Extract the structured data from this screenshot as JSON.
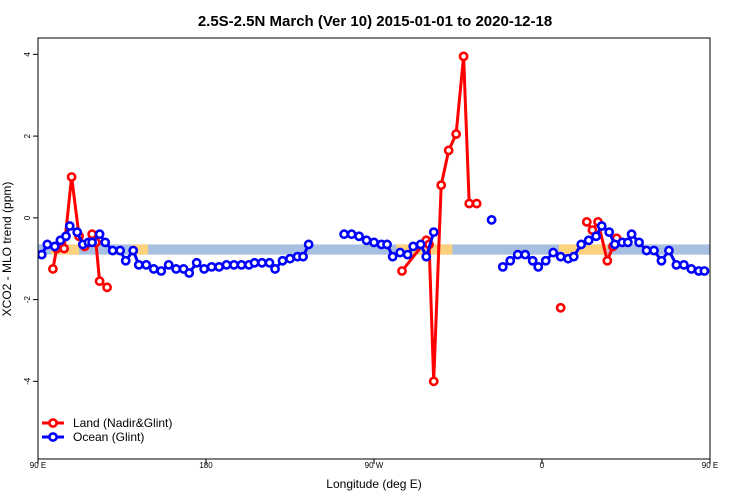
{
  "chart_data": {
    "type": "line",
    "title": "2.5S-2.5N March (Ver 10)   2015-01-01 to 2020-12-18",
    "xlabel": "Longitude (deg E)",
    "ylabel": "XCO2 - MLO trend (ppm)",
    "xlim": [
      90,
      450
    ],
    "ylim": [
      -5.9,
      4.4
    ],
    "x_ticks": [
      {
        "value": 90,
        "label": "90 E"
      },
      {
        "value": 180,
        "label": "180"
      },
      {
        "value": 270,
        "label": "90 W"
      },
      {
        "value": 360,
        "label": "0"
      },
      {
        "value": 450,
        "label": "90 E"
      },
      {
        "value": 540,
        "label": "180"
      }
    ],
    "y_ticks": [
      {
        "value": 4,
        "label": "4"
      },
      {
        "value": 2,
        "label": "2"
      },
      {
        "value": 0,
        "label": "0"
      },
      {
        "value": -2,
        "label": "-2"
      },
      {
        "value": -4,
        "label": "-4"
      }
    ],
    "band": {
      "y_range": [
        -0.9,
        -0.65
      ],
      "ocean_color": "#a7bfe0",
      "land_color": "#fcd27f",
      "land_segments": [
        [
          97,
          112
        ],
        [
          140,
          149
        ],
        [
          282,
          312
        ],
        [
          369,
          395
        ],
        [
          457,
          472
        ],
        [
          500,
          509
        ]
      ]
    },
    "series": [
      {
        "name": "Land (Nadir&Glint)",
        "color": "#ff0000",
        "points": [
          [
            98,
            -1.25
          ],
          [
            100,
            -0.75
          ],
          [
            104,
            -0.75
          ],
          [
            108,
            1.0
          ],
          [
            112,
            -0.45
          ],
          [
            115,
            -0.7
          ],
          [
            119,
            -0.4
          ],
          [
            121,
            -0.6
          ],
          [
            123,
            -1.55
          ],
          [
            127,
            -1.7
          ],
          null,
          [
            285,
            -1.3
          ],
          [
            298,
            -0.55
          ],
          [
            299.5,
            -0.65
          ],
          [
            302,
            -4.0
          ],
          [
            306,
            0.8
          ],
          [
            310,
            1.65
          ],
          [
            314,
            2.05
          ],
          [
            318,
            3.95
          ],
          [
            321,
            0.35
          ],
          [
            325,
            0.35
          ],
          null,
          [
            370,
            -2.2
          ],
          null,
          [
            384,
            -0.1
          ],
          [
            387,
            -0.3
          ],
          [
            390,
            -0.1
          ],
          [
            395,
            -1.05
          ],
          [
            398,
            -0.7
          ],
          [
            400,
            -0.5
          ],
          null,
          [
            458,
            -1.25
          ],
          [
            460,
            -0.75
          ],
          [
            464,
            -0.75
          ],
          [
            468,
            1.0
          ],
          [
            472,
            -0.45
          ],
          [
            475,
            -0.7
          ],
          [
            479,
            -0.4
          ],
          [
            481,
            -0.6
          ],
          [
            483,
            -1.55
          ],
          [
            487,
            -1.7
          ]
        ]
      },
      {
        "name": "Ocean (Glint)",
        "color": "#0000ff",
        "points": [
          [
            92,
            -0.9
          ],
          [
            95,
            -0.65
          ],
          [
            99,
            -0.7
          ],
          [
            102,
            -0.55
          ],
          [
            105,
            -0.45
          ],
          [
            107,
            -0.2
          ],
          [
            111,
            -0.35
          ],
          [
            114,
            -0.65
          ],
          [
            117,
            -0.6
          ],
          [
            119,
            -0.6
          ],
          [
            123,
            -0.4
          ],
          [
            126,
            -0.6
          ],
          [
            130,
            -0.8
          ],
          [
            134,
            -0.8
          ],
          [
            137,
            -1.05
          ],
          [
            141,
            -0.8
          ],
          [
            144,
            -1.15
          ],
          [
            148,
            -1.15
          ],
          [
            152,
            -1.25
          ],
          [
            156,
            -1.3
          ],
          [
            160,
            -1.15
          ],
          [
            164,
            -1.25
          ],
          [
            168,
            -1.25
          ],
          [
            171,
            -1.35
          ],
          [
            175,
            -1.1
          ],
          [
            179,
            -1.25
          ],
          [
            183,
            -1.2
          ],
          [
            187,
            -1.2
          ],
          [
            191,
            -1.15
          ],
          [
            195,
            -1.15
          ],
          [
            199,
            -1.15
          ],
          [
            203,
            -1.15
          ],
          [
            206,
            -1.1
          ],
          [
            210,
            -1.1
          ],
          [
            214,
            -1.1
          ],
          [
            217,
            -1.25
          ],
          [
            221,
            -1.05
          ],
          [
            225,
            -1.0
          ],
          [
            229,
            -0.95
          ],
          [
            232,
            -0.95
          ],
          [
            235,
            -0.65
          ],
          null,
          [
            254,
            -0.4
          ],
          [
            258,
            -0.4
          ],
          [
            262,
            -0.45
          ],
          [
            266,
            -0.55
          ],
          [
            270,
            -0.6
          ],
          [
            274,
            -0.65
          ],
          [
            277,
            -0.65
          ],
          [
            280,
            -0.95
          ],
          [
            284,
            -0.85
          ],
          [
            288,
            -0.9
          ],
          [
            291,
            -0.7
          ],
          [
            295,
            -0.65
          ],
          [
            298,
            -0.95
          ],
          [
            302,
            -0.35
          ],
          null,
          [
            333,
            -0.05
          ],
          null,
          [
            339,
            -1.2
          ],
          [
            343,
            -1.05
          ],
          [
            347,
            -0.9
          ],
          [
            351,
            -0.9
          ],
          [
            355,
            -1.05
          ],
          [
            358,
            -1.2
          ],
          [
            362,
            -1.05
          ],
          [
            366,
            -0.85
          ],
          [
            370,
            -0.95
          ],
          [
            374,
            -1.0
          ],
          [
            377,
            -0.95
          ],
          [
            381,
            -0.65
          ],
          [
            385,
            -0.55
          ],
          [
            389,
            -0.45
          ],
          [
            392,
            -0.2
          ],
          [
            396,
            -0.35
          ],
          [
            399,
            -0.65
          ],
          [
            403,
            -0.6
          ],
          [
            406,
            -0.6
          ],
          [
            408,
            -0.4
          ],
          [
            412,
            -0.6
          ],
          [
            416,
            -0.8
          ],
          [
            420,
            -0.8
          ],
          [
            424,
            -1.05
          ],
          [
            428,
            -0.8
          ],
          [
            432,
            -1.15
          ],
          [
            436,
            -1.15
          ],
          [
            440,
            -1.25
          ],
          [
            444,
            -1.3
          ],
          [
            447,
            -1.3
          ]
        ]
      }
    ],
    "legend": {
      "position": "bottom-left"
    },
    "grid": false
  }
}
